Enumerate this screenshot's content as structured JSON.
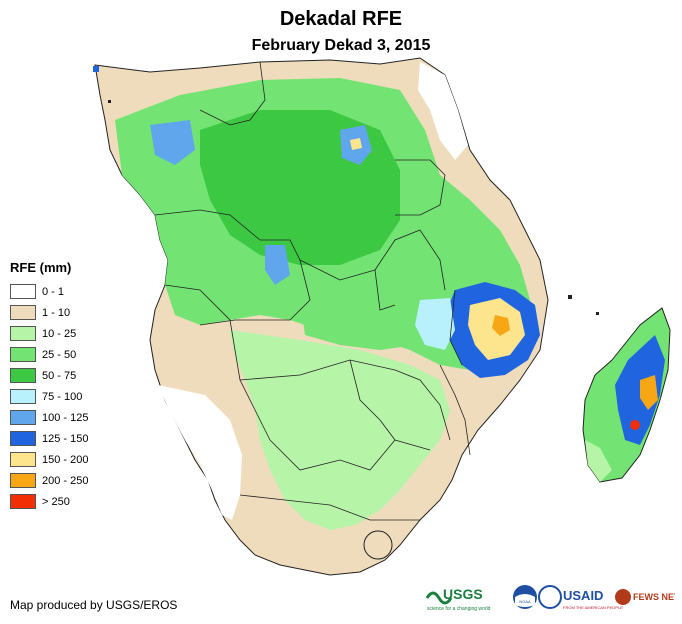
{
  "title": "Dekadal RFE",
  "subtitle": "February Dekad 3, 2015",
  "legend": {
    "title": "RFE (mm)",
    "items": [
      {
        "label": "0 - 1",
        "color": "#ffffff"
      },
      {
        "label": "1 - 10",
        "color": "#efdcbd"
      },
      {
        "label": "10 - 25",
        "color": "#b6f4a8"
      },
      {
        "label": "25 - 50",
        "color": "#73e473"
      },
      {
        "label": "50 - 75",
        "color": "#3dc843"
      },
      {
        "label": "75 - 100",
        "color": "#b8f0fb"
      },
      {
        "label": "100 - 125",
        "color": "#5fa6ec"
      },
      {
        "label": "125 - 150",
        "color": "#2164df"
      },
      {
        "label": "150 - 200",
        "color": "#fde58e"
      },
      {
        "label": "200 - 250",
        "color": "#f6a713"
      },
      {
        "label": "> 250",
        "color": "#f22e05"
      }
    ]
  },
  "credit": "Map produced by USGS/EROS",
  "logos": {
    "usgs": "USGS",
    "usgs_tagline": "science for a changing world",
    "noaa": "NOAA",
    "usaid": "USAID",
    "usaid_tagline": "FROM THE AMERICAN PEOPLE",
    "fewsnet": "FEWS NET"
  }
}
